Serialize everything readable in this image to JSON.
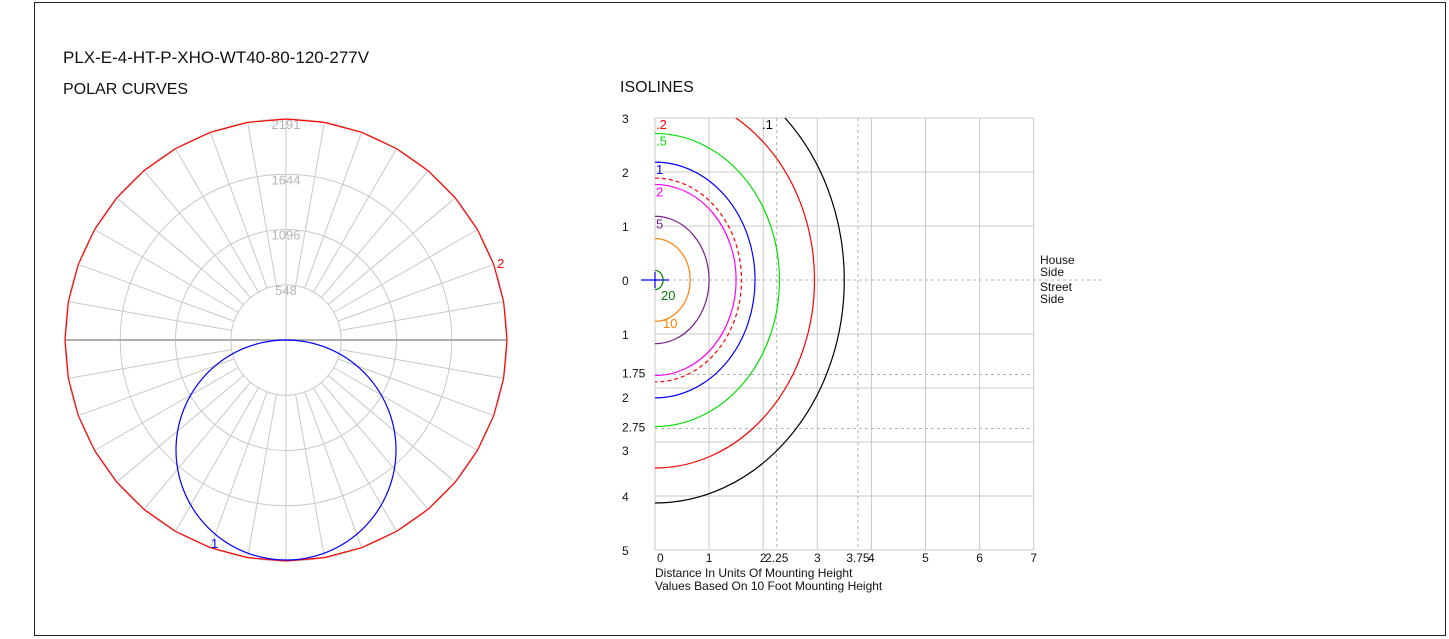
{
  "header": {
    "product_name": "PLX-E-4-HT-P-XHO-WT40-80-120-277V"
  },
  "polar": {
    "title": "POLAR CURVES",
    "ring_labels": [
      "548",
      "1096",
      "1644",
      "2191"
    ],
    "curve_labels": [
      "2",
      "1"
    ],
    "colors": {
      "curve_2": "#ff0000",
      "curve_1": "#0000ff",
      "grid": "#c8c8c8",
      "ring_text": "#b4b4b4"
    }
  },
  "isolines": {
    "title": "ISOLINES",
    "x_ticks": [
      "0",
      "1",
      "2",
      "2.25",
      "3",
      "3.75",
      "4",
      "5",
      "6",
      "7"
    ],
    "y_ticks_upper": [
      "3",
      "2",
      "1",
      "0"
    ],
    "y_ticks_lower": [
      "1",
      "1.75",
      "2",
      "2.75",
      "3",
      "4",
      "5"
    ],
    "house_side": [
      "House",
      "Side"
    ],
    "street_side": [
      "Street",
      "Side"
    ],
    "footnote_1": "Distance In Units Of Mounting Height",
    "footnote_2": "Values Based On 10 Foot Mounting Height",
    "contours": [
      {
        "label": ".1",
        "radius": 3.5,
        "color": "#000000"
      },
      {
        "label": ".2",
        "radius": 2.95,
        "color": "#ff0000"
      },
      {
        "label": ".5",
        "radius": 2.3,
        "color": "#00e000"
      },
      {
        "label": "1",
        "radius": 1.85,
        "color": "#0000ff"
      },
      {
        "label": "",
        "radius": 1.6,
        "color": "#ff0000",
        "dashed": true
      },
      {
        "label": "2",
        "radius": 1.5,
        "color": "#ff00ff"
      },
      {
        "label": "5",
        "radius": 1.0,
        "color": "#7a1f8a"
      },
      {
        "label": "10",
        "radius": 0.65,
        "color": "#ff8000"
      },
      {
        "label": "20",
        "radius": 0.15,
        "color": "#008000"
      }
    ]
  }
}
